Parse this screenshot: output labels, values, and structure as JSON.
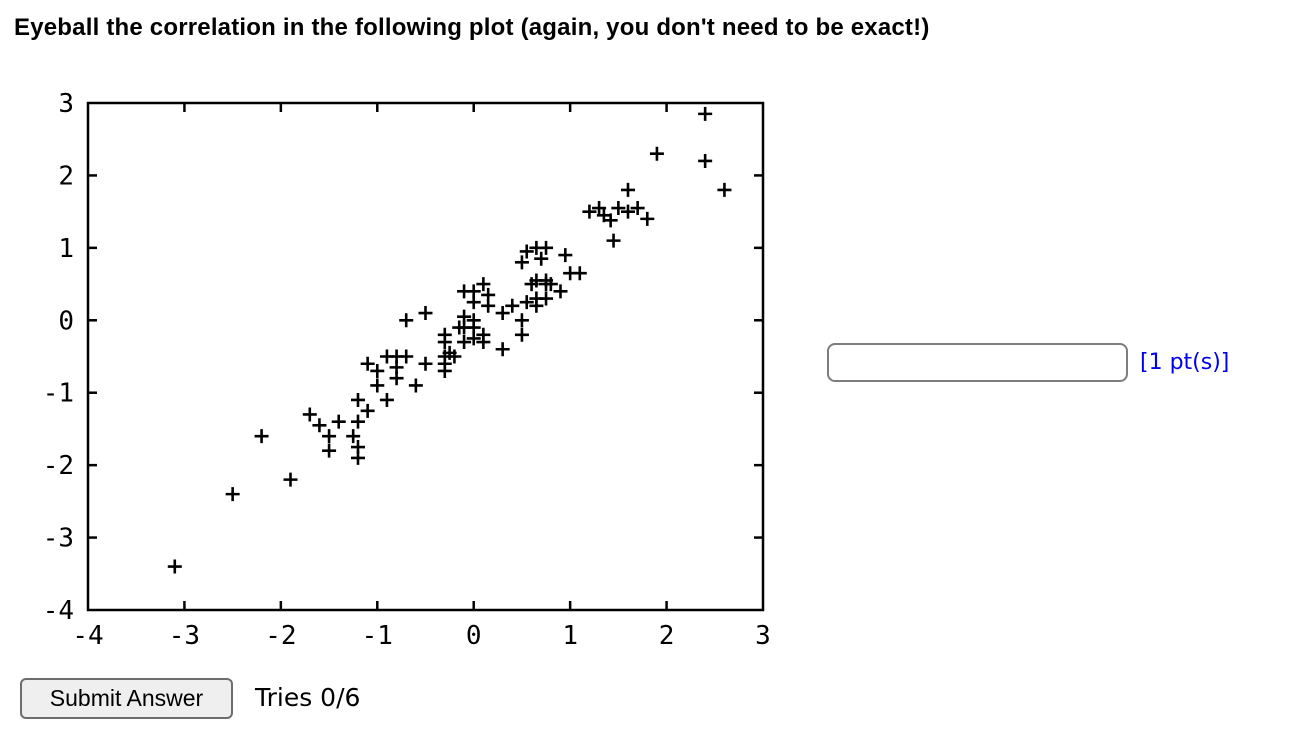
{
  "title": "Eyeball the correlation in the following plot (again, you don't need to be exact!)",
  "answer": {
    "input_value": "",
    "points_label": "[1 pt(s)]"
  },
  "footer": {
    "submit_label": "Submit Answer",
    "tries_label": "Tries 0/6"
  },
  "colors": {
    "marker": "#000000",
    "plot_border": "#000000",
    "points_label_text": "#0000EE",
    "button_bg": "#efefef",
    "button_border": "#6d6d6d",
    "input_border": "#7d7d7d"
  },
  "chart_data": {
    "type": "scatter",
    "marker": "plus",
    "title": "",
    "xlabel": "",
    "ylabel": "",
    "grid": false,
    "legend": "none",
    "xlim": [
      -4,
      3
    ],
    "ylim": [
      -4,
      3
    ],
    "xticks": [
      -4,
      -3,
      -2,
      -1,
      0,
      1,
      2,
      3
    ],
    "yticks": [
      -4,
      -3,
      -2,
      -1,
      0,
      1,
      2,
      3
    ],
    "points": [
      [
        -3.1,
        -3.4
      ],
      [
        -2.5,
        -2.4
      ],
      [
        -1.9,
        -2.2
      ],
      [
        -2.2,
        -1.6
      ],
      [
        -1.7,
        -1.3
      ],
      [
        -1.6,
        -1.45
      ],
      [
        -1.4,
        -1.4
      ],
      [
        -1.5,
        -1.6
      ],
      [
        -1.5,
        -1.8
      ],
      [
        -1.2,
        -1.4
      ],
      [
        -1.25,
        -1.6
      ],
      [
        -1.2,
        -1.75
      ],
      [
        -1.2,
        -1.9
      ],
      [
        -1.1,
        -1.25
      ],
      [
        -1.2,
        -1.1
      ],
      [
        -1.1,
        -0.6
      ],
      [
        -1.0,
        -0.7
      ],
      [
        -1.0,
        -0.9
      ],
      [
        -0.9,
        -1.1
      ],
      [
        -0.8,
        -0.8
      ],
      [
        -0.6,
        -0.9
      ],
      [
        -0.9,
        -0.5
      ],
      [
        -0.8,
        -0.5
      ],
      [
        -0.7,
        -0.5
      ],
      [
        -0.8,
        -0.65
      ],
      [
        -0.5,
        -0.6
      ],
      [
        -0.3,
        -0.7
      ],
      [
        -0.3,
        -0.6
      ],
      [
        -0.3,
        -0.5
      ],
      [
        -0.3,
        -0.3
      ],
      [
        -0.3,
        -0.2
      ],
      [
        -0.25,
        -0.45
      ],
      [
        -0.2,
        -0.5
      ],
      [
        -0.15,
        -0.1
      ],
      [
        -0.1,
        -0.3
      ],
      [
        -0.1,
        -0.1
      ],
      [
        0.0,
        -0.25
      ],
      [
        0.0,
        -0.1
      ],
      [
        0.1,
        -0.2
      ],
      [
        0.1,
        -0.3
      ],
      [
        0.3,
        -0.4
      ],
      [
        0.5,
        -0.2
      ],
      [
        -0.7,
        0.0
      ],
      [
        -0.5,
        0.1
      ],
      [
        -0.1,
        0.05
      ],
      [
        0.0,
        0.0
      ],
      [
        -0.1,
        0.4
      ],
      [
        0.0,
        0.4
      ],
      [
        0.0,
        0.25
      ],
      [
        0.1,
        0.5
      ],
      [
        0.15,
        0.35
      ],
      [
        0.15,
        0.2
      ],
      [
        0.3,
        0.1
      ],
      [
        0.4,
        0.2
      ],
      [
        0.5,
        0.0
      ],
      [
        0.5,
        0.8
      ],
      [
        0.55,
        0.95
      ],
      [
        0.6,
        0.5
      ],
      [
        0.75,
        0.5
      ],
      [
        0.8,
        0.5
      ],
      [
        0.65,
        0.3
      ],
      [
        0.75,
        0.3
      ],
      [
        0.65,
        0.2
      ],
      [
        0.9,
        0.4
      ],
      [
        0.55,
        0.25
      ],
      [
        0.65,
        1.0
      ],
      [
        0.75,
        1.0
      ],
      [
        0.7,
        0.85
      ],
      [
        0.95,
        0.9
      ],
      [
        1.0,
        0.65
      ],
      [
        1.1,
        0.65
      ],
      [
        0.65,
        0.55
      ],
      [
        0.75,
        0.55
      ],
      [
        1.2,
        1.5
      ],
      [
        1.3,
        1.55
      ],
      [
        1.35,
        1.45
      ],
      [
        1.42,
        1.38
      ],
      [
        1.5,
        1.55
      ],
      [
        1.6,
        1.5
      ],
      [
        1.7,
        1.55
      ],
      [
        1.8,
        1.4
      ],
      [
        1.6,
        1.8
      ],
      [
        1.45,
        1.1
      ],
      [
        1.9,
        2.3
      ],
      [
        2.4,
        2.85
      ],
      [
        2.4,
        2.2
      ],
      [
        2.6,
        1.8
      ]
    ]
  }
}
